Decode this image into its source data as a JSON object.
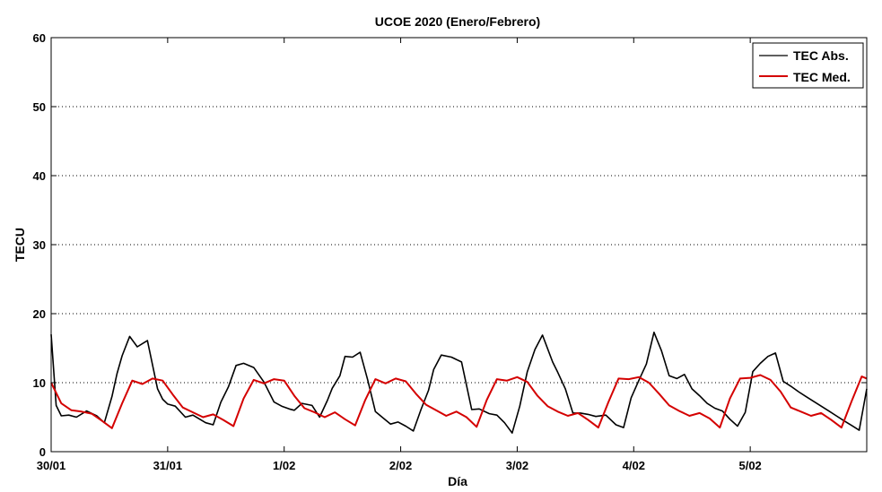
{
  "chart_data": {
    "type": "line",
    "title": "UCOE 2020 (Enero/Febrero)",
    "xlabel": "Día",
    "ylabel": "TECU",
    "xlim": [
      0,
      7
    ],
    "ylim": [
      0,
      60
    ],
    "yticks": [
      0,
      10,
      20,
      30,
      40,
      50,
      60
    ],
    "xticks": [
      {
        "x": 0,
        "label": "30/01"
      },
      {
        "x": 1,
        "label": "31/01"
      },
      {
        "x": 2,
        "label": "1/02"
      },
      {
        "x": 3,
        "label": "2/02"
      },
      {
        "x": 4,
        "label": "3/02"
      },
      {
        "x": 5,
        "label": "4/02"
      },
      {
        "x": 6,
        "label": "5/02"
      }
    ],
    "grid": true,
    "legend_position": "top-right",
    "series": [
      {
        "name": "TEC Abs.",
        "color": "#000000",
        "x": [
          0,
          0.043,
          0.087,
          0.152,
          0.217,
          0.304,
          0.391,
          0.457,
          0.522,
          0.565,
          0.609,
          0.674,
          0.739,
          0.826,
          0.913,
          0.957,
          1.0,
          1.065,
          1.152,
          1.217,
          1.326,
          1.391,
          1.457,
          1.522,
          1.587,
          1.652,
          1.739,
          1.826,
          1.913,
          1.978,
          2.043,
          2.087,
          2.152,
          2.239,
          2.304,
          2.37,
          2.413,
          2.478,
          2.522,
          2.587,
          2.652,
          2.717,
          2.783,
          2.848,
          2.913,
          2.978,
          3.043,
          3.109,
          3.174,
          3.239,
          3.283,
          3.348,
          3.435,
          3.522,
          3.609,
          3.674,
          3.761,
          3.826,
          3.891,
          3.957,
          4.022,
          4.087,
          4.152,
          4.217,
          4.304,
          4.348,
          4.413,
          4.478,
          4.543,
          4.609,
          4.674,
          4.761,
          4.848,
          4.913,
          4.978,
          5.043,
          5.109,
          5.174,
          5.239,
          5.304,
          5.37,
          5.435,
          5.5,
          5.565,
          5.63,
          5.696,
          5.761,
          5.826,
          5.891,
          5.957,
          6.022,
          6.087,
          6.152,
          6.217,
          6.283,
          6.348,
          6.413,
          6.478,
          6.543,
          6.609,
          6.674,
          6.739,
          6.804,
          6.87,
          6.935,
          7.0
        ],
        "values": [
          17.0,
          6.7,
          5.2,
          5.3,
          5.0,
          5.9,
          5.2,
          4.2,
          8.0,
          11.3,
          13.9,
          16.7,
          15.2,
          16.1,
          9.1,
          7.6,
          6.9,
          6.6,
          5.0,
          5.3,
          4.2,
          3.9,
          7.2,
          9.4,
          12.5,
          12.8,
          12.2,
          10.1,
          7.2,
          6.6,
          6.2,
          6.0,
          7.0,
          6.7,
          5.0,
          7.4,
          9.2,
          11.0,
          13.8,
          13.7,
          14.4,
          10.4,
          5.8,
          4.9,
          4.0,
          4.3,
          3.7,
          3.0,
          6.1,
          8.9,
          11.9,
          14.0,
          13.7,
          13.0,
          6.1,
          6.2,
          5.5,
          5.3,
          4.2,
          2.7,
          6.6,
          11.6,
          14.8,
          16.9,
          13.0,
          11.5,
          9.1,
          5.6,
          5.6,
          5.4,
          5.1,
          5.3,
          3.9,
          3.5,
          7.8,
          10.3,
          12.7,
          17.3,
          14.6,
          11.0,
          10.6,
          11.2,
          9.1,
          8.1,
          7.0,
          6.3,
          5.9,
          4.7,
          3.7,
          5.7,
          11.6,
          12.8,
          13.8,
          14.3,
          10.2,
          9.5,
          8.7,
          8.0,
          7.3,
          6.6,
          5.9,
          5.2,
          4.5,
          3.8,
          3.1,
          9.1
        ]
      },
      {
        "name": "TEC Med.",
        "color": "#d40000",
        "x": [
          0,
          0.087,
          0.174,
          0.261,
          0.348,
          0.435,
          0.522,
          0.609,
          0.696,
          0.783,
          0.87,
          0.957,
          1.043,
          1.13,
          1.217,
          1.304,
          1.391,
          1.478,
          1.565,
          1.652,
          1.739,
          1.826,
          1.913,
          2.0,
          2.087,
          2.174,
          2.261,
          2.348,
          2.435,
          2.522,
          2.609,
          2.696,
          2.783,
          2.87,
          2.957,
          3.043,
          3.13,
          3.217,
          3.304,
          3.391,
          3.478,
          3.565,
          3.652,
          3.739,
          3.826,
          3.913,
          4.0,
          4.087,
          4.174,
          4.261,
          4.348,
          4.435,
          4.522,
          4.609,
          4.696,
          4.783,
          4.87,
          4.957,
          5.043,
          5.13,
          5.217,
          5.304,
          5.391,
          5.478,
          5.565,
          5.652,
          5.739,
          5.826,
          5.913,
          6.0,
          6.087,
          6.174,
          6.261,
          6.348,
          6.435,
          6.522,
          6.609,
          6.696,
          6.783,
          6.87,
          6.957,
          7.0
        ],
        "values": [
          10.0,
          7.0,
          6.0,
          5.8,
          5.5,
          4.5,
          3.4,
          7.0,
          10.3,
          9.8,
          10.6,
          10.3,
          8.3,
          6.4,
          5.7,
          5.0,
          5.4,
          4.6,
          3.7,
          7.7,
          10.4,
          9.9,
          10.5,
          10.3,
          8.1,
          6.3,
          5.7,
          5.0,
          5.7,
          4.7,
          3.8,
          7.5,
          10.5,
          9.9,
          10.6,
          10.2,
          8.4,
          6.8,
          6.0,
          5.2,
          5.8,
          5.0,
          3.6,
          7.5,
          10.5,
          10.3,
          10.8,
          10.1,
          8.1,
          6.6,
          5.8,
          5.2,
          5.6,
          4.6,
          3.5,
          7.2,
          10.6,
          10.5,
          10.8,
          10.0,
          8.4,
          6.7,
          5.9,
          5.2,
          5.6,
          4.8,
          3.5,
          7.7,
          10.6,
          10.7,
          11.1,
          10.4,
          8.7,
          6.4,
          5.8,
          5.2,
          5.6,
          4.6,
          3.5,
          7.3,
          10.9,
          10.6
        ]
      }
    ]
  }
}
